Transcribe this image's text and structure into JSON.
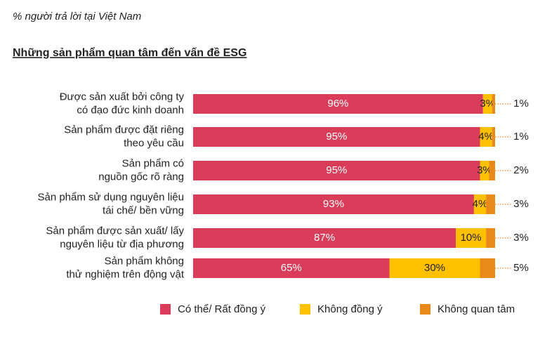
{
  "chart_data": {
    "type": "stacked-bar-horizontal",
    "subtitle": "% người trả lời tại Việt Nam",
    "title": "Những sản phẩm quan tâm đến vấn đề ESG",
    "categories": [
      "Được sản xuất bởi công ty\ncó đạo đức kinh doanh",
      "Sản phẩm được đặt riêng\ntheo yêu cầu",
      "Sản phẩm có\nnguồn gốc rõ ràng",
      "Sản phẩm sử dụng nguyên liệu\ntái chế/ bền vững",
      "Sản phẩm được sản xuất/ lấy\nnguyên liệu từ địa phương",
      "Sản phẩm không\nthử nghiệm trên động vật"
    ],
    "series": [
      {
        "name": "Có thể/ Rất đồng ý",
        "color": "#d93d5a",
        "values": [
          96,
          95,
          95,
          93,
          87,
          65
        ],
        "value_labels": [
          "96%",
          "95%",
          "95%",
          "93%",
          "87%",
          "65%"
        ]
      },
      {
        "name": "Không đồng ý",
        "color": "#ffc000",
        "values": [
          3,
          4,
          3,
          4,
          10,
          30
        ],
        "value_labels": [
          "3%",
          "4%",
          "3%",
          "4%",
          "10%",
          "30%"
        ]
      },
      {
        "name": "Không quan tâm",
        "color": "#e8891a",
        "values": [
          1,
          1,
          2,
          3,
          3,
          5
        ],
        "value_labels": [
          "1%",
          "1%",
          "2%",
          "3%",
          "3%",
          "5%"
        ]
      }
    ]
  }
}
